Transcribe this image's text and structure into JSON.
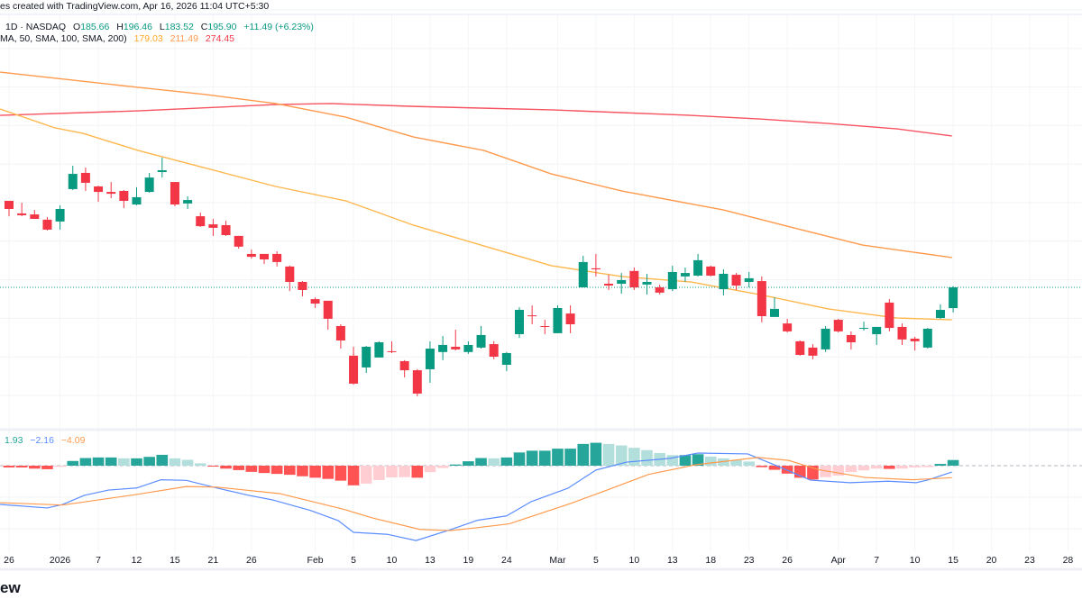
{
  "header": {
    "credit": "es created with TradingView.com, Apr 16, 2026 11:04 UTC+5:30",
    "symbol_info": "1D · NASDAQ",
    "open_label": "O",
    "open": "185.66",
    "high_label": "H",
    "high": "196.46",
    "low_label": "L",
    "low": "183.52",
    "close_label": "C",
    "close": "195.90",
    "change": "+11.49 (+6.23%)",
    "ma_label": "MA, 50, SMA, 100, SMA, 200)",
    "sma50": "179.03",
    "sma100": "211.49",
    "sma200": "274.45"
  },
  "macd_legend": {
    "hist": "1.93",
    "macd": "−2.16",
    "signal": "−4.09"
  },
  "logo_text": "ew",
  "colors": {
    "up": "#089981",
    "down": "#f23645",
    "sma50": "#ffb74d",
    "sma100": "#ff9a4d",
    "sma200": "#f7525f",
    "macd": "#5b8cff",
    "signal": "#ff9a4d",
    "hist_up_strong": "#26a69a",
    "hist_up_weak": "#b2dfdb",
    "hist_down_strong": "#ff5252",
    "hist_down_weak": "#ffcdd2"
  },
  "chart_data": {
    "type": "candlestick",
    "last_price": 195.9,
    "x_ticks": [
      {
        "i": 0,
        "label": "26"
      },
      {
        "i": 4,
        "label": "2026"
      },
      {
        "i": 7,
        "label": "7"
      },
      {
        "i": 10,
        "label": "12"
      },
      {
        "i": 13,
        "label": "15"
      },
      {
        "i": 16,
        "label": "21"
      },
      {
        "i": 19,
        "label": "26"
      },
      {
        "i": 24,
        "label": "Feb"
      },
      {
        "i": 27,
        "label": "5"
      },
      {
        "i": 30,
        "label": "10"
      },
      {
        "i": 33,
        "label": "13"
      },
      {
        "i": 36,
        "label": "19"
      },
      {
        "i": 39,
        "label": "24"
      },
      {
        "i": 43,
        "label": "Mar"
      },
      {
        "i": 46,
        "label": "5"
      },
      {
        "i": 49,
        "label": "10"
      },
      {
        "i": 52,
        "label": "13"
      },
      {
        "i": 55,
        "label": "18"
      },
      {
        "i": 58,
        "label": "23"
      },
      {
        "i": 61,
        "label": "26"
      },
      {
        "i": 65,
        "label": "Apr"
      },
      {
        "i": 68,
        "label": "7"
      },
      {
        "i": 71,
        "label": "10"
      },
      {
        "i": 74,
        "label": "15"
      },
      {
        "i": 77,
        "label": "20"
      },
      {
        "i": 80,
        "label": "23"
      },
      {
        "i": 83,
        "label": "28"
      }
    ],
    "ohlc": [
      [
        238.6,
        238.6,
        231.0,
        234.6
      ],
      [
        232.4,
        237.7,
        231.0,
        231.5
      ],
      [
        231.9,
        234.1,
        229.7,
        229.7
      ],
      [
        229.3,
        230.6,
        223.9,
        224.4
      ],
      [
        228.4,
        236.4,
        224.4,
        234.6
      ],
      [
        244.4,
        255.9,
        243.9,
        251.9
      ],
      [
        252.4,
        255.0,
        243.5,
        247.5
      ],
      [
        245.7,
        246.1,
        238.1,
        243.0
      ],
      [
        243.0,
        247.9,
        239.9,
        242.1
      ],
      [
        243.5,
        243.9,
        235.0,
        238.6
      ],
      [
        236.8,
        245.3,
        236.4,
        240.4
      ],
      [
        243.0,
        252.4,
        242.6,
        250.1
      ],
      [
        252.8,
        259.9,
        250.1,
        253.7
      ],
      [
        247.9,
        247.9,
        235.9,
        236.8
      ],
      [
        237.3,
        240.8,
        234.6,
        239.0
      ],
      [
        231.0,
        232.8,
        225.7,
        226.1
      ],
      [
        227.0,
        229.7,
        221.3,
        225.3
      ],
      [
        226.6,
        228.8,
        221.3,
        221.7
      ],
      [
        221.3,
        221.3,
        215.0,
        216.0
      ],
      [
        212.4,
        214.6,
        210.1,
        211.0
      ],
      [
        212.4,
        212.4,
        207.5,
        209.7
      ],
      [
        212.4,
        213.7,
        206.2,
        208.4
      ],
      [
        206.2,
        206.6,
        194.1,
        198.6
      ],
      [
        198.6,
        199.0,
        191.5,
        194.6
      ],
      [
        190.1,
        191.0,
        185.7,
        187.9
      ],
      [
        189.3,
        189.3,
        175.0,
        180.4
      ],
      [
        176.8,
        177.7,
        165.7,
        169.7
      ],
      [
        162.2,
        166.6,
        147.9,
        148.4
      ],
      [
        156.4,
        167.0,
        153.7,
        166.6
      ],
      [
        161.3,
        169.3,
        161.3,
        168.8
      ],
      [
        164.4,
        169.3,
        163.5,
        164.0
      ],
      [
        159.5,
        160.0,
        151.5,
        155.0
      ],
      [
        155.0,
        155.5,
        142.1,
        143.5
      ],
      [
        155.5,
        169.3,
        148.8,
        165.7
      ],
      [
        164.0,
        171.9,
        160.0,
        167.5
      ],
      [
        166.6,
        175.0,
        164.8,
        165.3
      ],
      [
        164.0,
        169.3,
        163.1,
        167.5
      ],
      [
        166.2,
        176.8,
        165.7,
        172.4
      ],
      [
        167.9,
        169.3,
        160.4,
        161.7
      ],
      [
        157.7,
        164.0,
        154.6,
        163.5
      ],
      [
        172.8,
        186.1,
        171.0,
        184.8
      ],
      [
        182.1,
        187.0,
        177.7,
        181.7
      ],
      [
        176.8,
        179.9,
        172.8,
        176.4
      ],
      [
        173.3,
        187.0,
        173.3,
        185.7
      ],
      [
        183.0,
        187.0,
        173.3,
        177.7
      ],
      [
        195.9,
        211.5,
        195.9,
        208.4
      ],
      [
        205.3,
        212.4,
        201.3,
        204.8
      ],
      [
        197.7,
        202.1,
        194.6,
        196.8
      ],
      [
        197.7,
        203.0,
        192.8,
        199.5
      ],
      [
        204.0,
        205.7,
        194.6,
        195.9
      ],
      [
        197.3,
        202.6,
        192.4,
        198.6
      ],
      [
        195.9,
        197.3,
        192.4,
        193.3
      ],
      [
        195.0,
        206.6,
        194.1,
        203.5
      ],
      [
        201.3,
        205.7,
        198.6,
        203.0
      ],
      [
        201.7,
        212.4,
        201.3,
        209.3
      ],
      [
        206.2,
        206.6,
        201.3,
        201.7
      ],
      [
        195.0,
        204.8,
        191.9,
        202.6
      ],
      [
        202.1,
        203.0,
        194.6,
        196.8
      ],
      [
        198.6,
        203.5,
        195.9,
        200.4
      ],
      [
        199.0,
        201.3,
        178.6,
        181.7
      ],
      [
        181.3,
        191.0,
        181.3,
        185.3
      ],
      [
        178.1,
        180.4,
        173.7,
        174.2
      ],
      [
        169.3,
        169.7,
        162.2,
        162.6
      ],
      [
        166.2,
        167.9,
        160.4,
        162.2
      ],
      [
        165.3,
        176.8,
        164.0,
        175.5
      ],
      [
        179.9,
        180.4,
        173.7,
        174.2
      ],
      [
        172.4,
        174.2,
        165.3,
        168.8
      ],
      [
        175.5,
        179.0,
        174.6,
        175.9
      ],
      [
        172.8,
        176.4,
        167.5,
        176.4
      ],
      [
        188.4,
        190.1,
        174.2,
        175.9
      ],
      [
        176.4,
        178.1,
        167.5,
        170.2
      ],
      [
        170.6,
        171.5,
        164.8,
        169.3
      ],
      [
        166.2,
        175.9,
        165.7,
        175.5
      ],
      [
        180.8,
        187.5,
        180.4,
        184.8
      ],
      [
        185.66,
        196.46,
        183.52,
        195.9
      ]
    ],
    "sma50": [
      [
        -0.7,
        283.9
      ],
      [
        3.6,
        274.6
      ],
      [
        5.8,
        271.9
      ],
      [
        10.1,
        263.5
      ],
      [
        15.5,
        254.6
      ],
      [
        20.9,
        245.7
      ],
      [
        26.4,
        238.6
      ],
      [
        31.7,
        226.6
      ],
      [
        37.2,
        216.4
      ],
      [
        42.5,
        206.6
      ],
      [
        48.0,
        201.3
      ],
      [
        53.4,
        198.6
      ],
      [
        58.8,
        192.4
      ],
      [
        64.2,
        185.3
      ],
      [
        69.6,
        180.8
      ],
      [
        73.9,
        179.9
      ]
    ],
    "sma100": [
      [
        -0.7,
        302.1
      ],
      [
        10.1,
        294.6
      ],
      [
        15.5,
        291.0
      ],
      [
        20.9,
        286.6
      ],
      [
        26.4,
        279.9
      ],
      [
        31.7,
        270.1
      ],
      [
        37.2,
        263.5
      ],
      [
        42.5,
        251.9
      ],
      [
        48.0,
        243.5
      ],
      [
        56.0,
        234.1
      ],
      [
        61.5,
        225.3
      ],
      [
        66.9,
        216.8
      ],
      [
        73.9,
        210.6
      ]
    ],
    "sma200": [
      [
        -0.7,
        280.8
      ],
      [
        10.1,
        283.0
      ],
      [
        20.9,
        286.1
      ],
      [
        25.2,
        286.6
      ],
      [
        31.7,
        285.2
      ],
      [
        42.5,
        283.5
      ],
      [
        53.4,
        280.8
      ],
      [
        58.8,
        279.0
      ],
      [
        64.2,
        276.8
      ],
      [
        69.6,
        274.1
      ],
      [
        73.9,
        270.6
      ]
    ],
    "macd_hist": [
      -0.6,
      -0.6,
      -1.0,
      -1.2,
      -0.4,
      1.6,
      2.6,
      2.8,
      2.8,
      2.5,
      2.5,
      3.0,
      3.7,
      2.5,
      2.0,
      0.8,
      -0.1,
      -1.0,
      -1.5,
      -2.1,
      -2.5,
      -2.8,
      -3.1,
      -3.6,
      -4.1,
      -4.5,
      -5.1,
      -6.7,
      -6.1,
      -4.9,
      -4.0,
      -3.9,
      -4.1,
      -2.2,
      -0.8,
      0.4,
      1.5,
      2.6,
      2.5,
      2.8,
      4.5,
      5.1,
      5.1,
      5.8,
      5.8,
      7.4,
      7.8,
      7.4,
      6.9,
      6.1,
      5.3,
      4.3,
      3.6,
      3.6,
      3.9,
      3.1,
      2.5,
      1.9,
      1.4,
      -0.5,
      -1.4,
      -2.7,
      -4.1,
      -4.7,
      -3.9,
      -3.4,
      -2.2,
      -1.6,
      -1.0,
      -1.1,
      -1.0,
      -0.6,
      -0.5,
      0.6,
      1.93
    ],
    "macd_line": [
      [
        -0.7,
        -13.2
      ],
      [
        3.0,
        -14.4
      ],
      [
        4.2,
        -13.2
      ],
      [
        5.9,
        -10.1
      ],
      [
        7.8,
        -8.3
      ],
      [
        10.0,
        -7.6
      ],
      [
        11.9,
        -4.8
      ],
      [
        13.9,
        -5.0
      ],
      [
        16.3,
        -7.6
      ],
      [
        18.8,
        -10.1
      ],
      [
        20.7,
        -11.7
      ],
      [
        23.6,
        -15.2
      ],
      [
        25.8,
        -18.7
      ],
      [
        27.0,
        -22.7
      ],
      [
        29.7,
        -23.4
      ],
      [
        31.9,
        -25.5
      ],
      [
        34.6,
        -21.8
      ],
      [
        36.7,
        -18.6
      ],
      [
        39.0,
        -17.1
      ],
      [
        40.9,
        -12.3
      ],
      [
        43.8,
        -7.7
      ],
      [
        46.0,
        -1.5
      ],
      [
        48.4,
        1.2
      ],
      [
        51.8,
        2.5
      ],
      [
        54.0,
        4.3
      ],
      [
        57.9,
        4.0
      ],
      [
        60.1,
        0.1
      ],
      [
        62.8,
        -4.9
      ],
      [
        65.9,
        -5.8
      ],
      [
        68.9,
        -5.3
      ],
      [
        71.1,
        -5.8
      ],
      [
        72.0,
        -4.9
      ],
      [
        73.9,
        -2.16
      ]
    ],
    "signal_line": [
      [
        -0.7,
        -12.6
      ],
      [
        4.2,
        -13.4
      ],
      [
        10.0,
        -9.8
      ],
      [
        13.9,
        -7.1
      ],
      [
        16.3,
        -7.3
      ],
      [
        21.2,
        -9.5
      ],
      [
        26.1,
        -14.7
      ],
      [
        28.5,
        -17.8
      ],
      [
        32.2,
        -21.7
      ],
      [
        34.6,
        -22.1
      ],
      [
        36.7,
        -21.1
      ],
      [
        39.2,
        -19.8
      ],
      [
        44.0,
        -12.9
      ],
      [
        46.5,
        -8.9
      ],
      [
        50.1,
        -3.0
      ],
      [
        53.8,
        0.3
      ],
      [
        58.7,
        2.8
      ],
      [
        61.1,
        1.8
      ],
      [
        63.5,
        -1.4
      ],
      [
        67.1,
        -4.0
      ],
      [
        70.8,
        -4.8
      ],
      [
        73.9,
        -4.09
      ]
    ]
  }
}
